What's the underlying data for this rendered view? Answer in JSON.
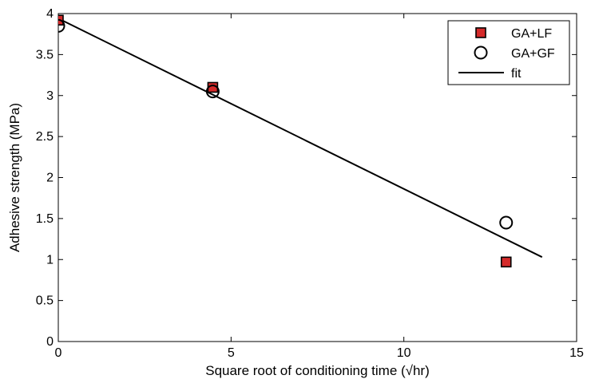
{
  "chart_data": {
    "type": "scatter",
    "title": "",
    "xlabel": "Square root of conditioning time (√hr)",
    "ylabel": "Adhesive strength (MPa)",
    "xlim": [
      0,
      15
    ],
    "ylim": [
      0,
      4
    ],
    "xticks": [
      0,
      5,
      10,
      15
    ],
    "xtick_labels": [
      "0",
      "5",
      "10",
      "15"
    ],
    "yticks": [
      0,
      0.5,
      1,
      1.5,
      2,
      2.5,
      3,
      3.5,
      4
    ],
    "ytick_labels": [
      "0",
      "0.5",
      "1",
      "1.5",
      "2",
      "2.5",
      "3",
      "3.5",
      "4"
    ],
    "grid": false,
    "legend_position": "top-right",
    "series": [
      {
        "name": "GA+LF",
        "marker": "square",
        "color": "#d42a2a",
        "edge_color": "#000000",
        "x": [
          0,
          4.47,
          12.96
        ],
        "y": [
          3.92,
          3.1,
          0.97
        ]
      },
      {
        "name": "GA+GF",
        "marker": "circle-open",
        "color": "#ffffff",
        "edge_color": "#000000",
        "x": [
          0,
          4.47,
          12.96
        ],
        "y": [
          3.85,
          3.05,
          1.45
        ]
      },
      {
        "name": "fit",
        "marker": "line",
        "color": "#000000",
        "x": [
          0,
          14
        ],
        "y": [
          3.94,
          1.03
        ]
      }
    ]
  }
}
